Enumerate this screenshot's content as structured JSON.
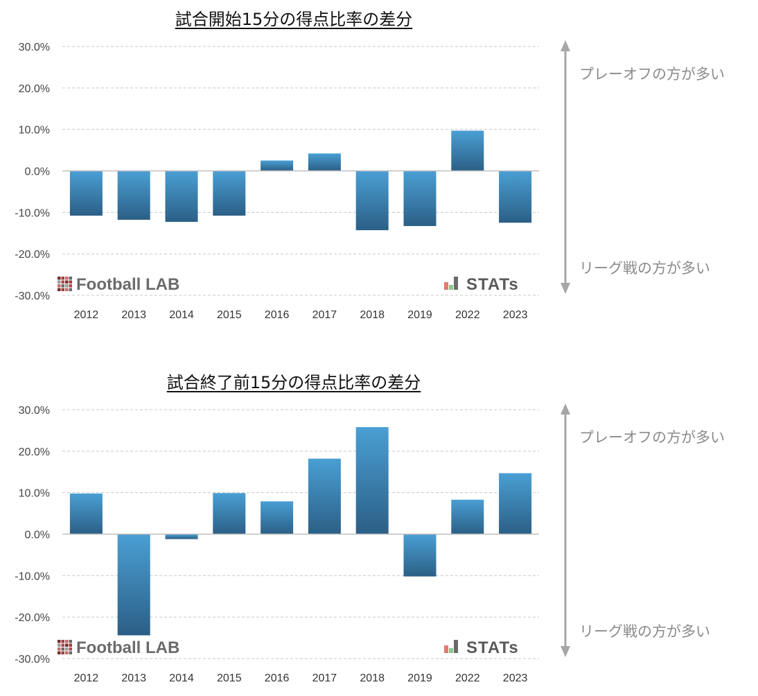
{
  "colors": {
    "bar_top": "#4a9fd4",
    "bar_bottom": "#2b5f86",
    "arrow": "#a6a6a6",
    "grid": "#c8c8c8",
    "zero_line": "#bfbfbf"
  },
  "side_labels": {
    "top": "プレーオフの方が多い",
    "bottom": "リーグ戦の方が多い"
  },
  "logos": {
    "football_lab": "Football LAB",
    "stats": "STATs"
  },
  "chart_data": [
    {
      "type": "bar",
      "title": "試合開始15分の得点比率の差分",
      "categories": [
        "2012",
        "2013",
        "2014",
        "2015",
        "2016",
        "2017",
        "2018",
        "2019",
        "2022",
        "2023"
      ],
      "values": [
        -10.8,
        -11.8,
        -12.3,
        -10.8,
        2.5,
        4.2,
        -14.3,
        -13.3,
        9.7,
        -12.5
      ],
      "ylim": [
        -30,
        30
      ],
      "yticks": [
        "30.0%",
        "20.0%",
        "10.0%",
        "0.0%",
        "-10.0%",
        "-20.0%",
        "-30.0%"
      ],
      "grid": true
    },
    {
      "type": "bar",
      "title": "試合終了前15分の得点比率の差分",
      "categories": [
        "2012",
        "2013",
        "2014",
        "2015",
        "2016",
        "2017",
        "2018",
        "2019",
        "2022",
        "2023"
      ],
      "values": [
        9.8,
        -24.4,
        -1.2,
        9.9,
        7.9,
        18.2,
        25.8,
        -10.2,
        8.3,
        14.7
      ],
      "ylim": [
        -30,
        30
      ],
      "yticks": [
        "30.0%",
        "20.0%",
        "10.0%",
        "0.0%",
        "-10.0%",
        "-20.0%",
        "-30.0%"
      ],
      "grid": true
    }
  ]
}
